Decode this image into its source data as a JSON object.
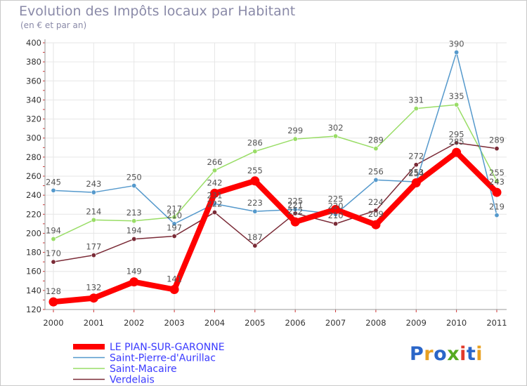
{
  "chart_data": {
    "type": "line",
    "title": "Evolution des Impôts locaux par Habitant",
    "subtitle": "(en € et par an)",
    "xlabel": "",
    "ylabel": "",
    "x": [
      "2000",
      "2001",
      "2002",
      "2003",
      "2004",
      "2005",
      "2006",
      "2007",
      "2008",
      "2009",
      "2010",
      "2011"
    ],
    "ylim": [
      120,
      400
    ],
    "yticks": [
      120,
      140,
      160,
      180,
      200,
      220,
      240,
      260,
      280,
      300,
      320,
      340,
      360,
      380,
      400
    ],
    "grid": true,
    "legend_position": "bottom-left",
    "series": [
      {
        "name": "Saint-Macaire",
        "color": "#99dd66",
        "values": [
          194,
          214,
          213,
          217,
          266,
          286,
          299,
          302,
          289,
          331,
          335,
          255
        ]
      },
      {
        "name": "Verdelais",
        "color": "#7a2a36",
        "values": [
          170,
          177,
          194,
          197,
          222,
          187,
          221,
          210,
          224,
          272,
          295,
          289
        ]
      },
      {
        "name": "Saint-Pierre-d'Aurillac",
        "color": "#5599cc",
        "values": [
          245,
          243,
          250,
          210,
          231,
          223,
          225,
          220,
          256,
          254,
          390,
          219
        ]
      },
      {
        "name": "LE PIAN-SUR-GARONNE",
        "color": "#ff0000",
        "values": [
          128,
          132,
          149,
          141,
          242,
          255,
          212,
          225,
          209,
          253,
          285,
          243
        ]
      }
    ]
  },
  "logo": {
    "text": "Proxiti",
    "letters": [
      "P",
      "r",
      "o",
      "x",
      "i",
      "t",
      "i"
    ],
    "colors": [
      "#2a66c8",
      "#e8a020",
      "#2a66c8",
      "#55aa22",
      "#e23a2a",
      "#2a66c8",
      "#e8a020"
    ]
  }
}
